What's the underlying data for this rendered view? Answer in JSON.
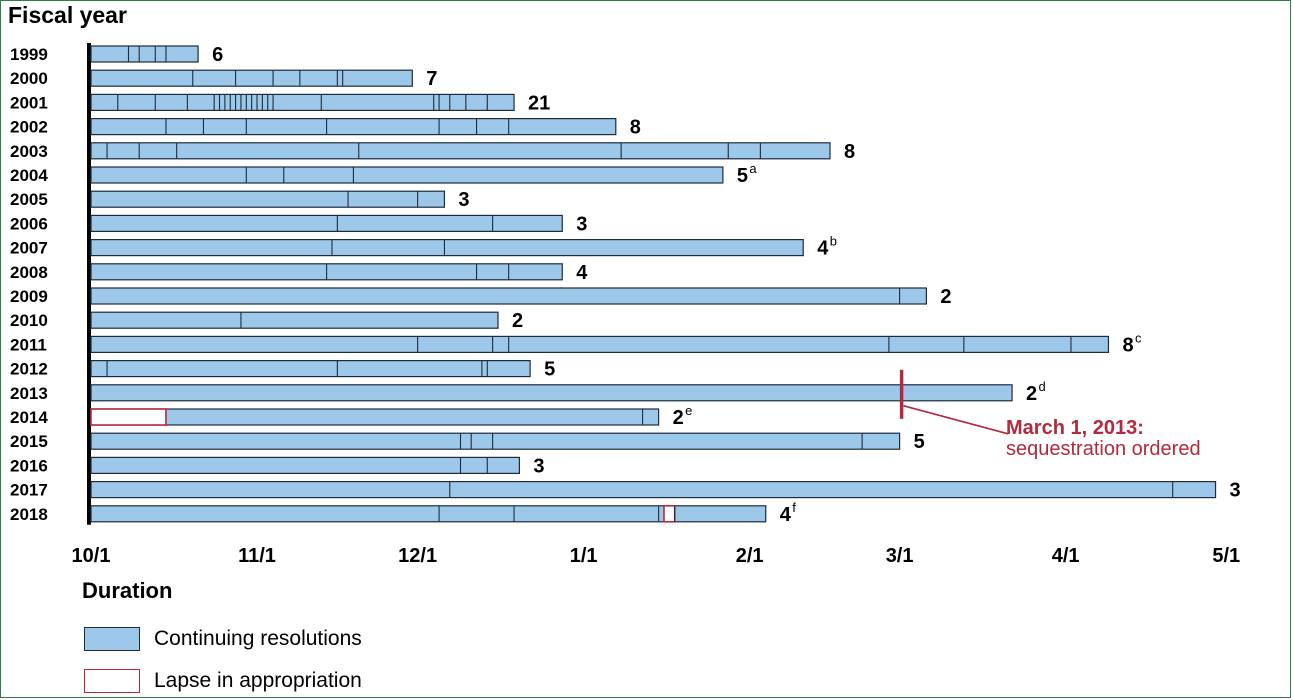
{
  "title": "Fiscal year",
  "colors": {
    "cr_fill": "#9dc8ea",
    "cr_stroke": "#1e2b3a",
    "lapse_stroke": "#c0263a",
    "annotation": "#b22a3d",
    "border": "#2e7d46"
  },
  "chart_data": {
    "type": "bar",
    "orientation": "horizontal",
    "x_unit": "days since October 1",
    "x_ticks": [
      {
        "label": "10/1",
        "day": 0
      },
      {
        "label": "11/1",
        "day": 31
      },
      {
        "label": "12/1",
        "day": 61
      },
      {
        "label": "1/1",
        "day": 92
      },
      {
        "label": "2/1",
        "day": 123
      },
      {
        "label": "3/1",
        "day": 151
      },
      {
        "label": "4/1",
        "day": 182
      },
      {
        "label": "5/1",
        "day": 212
      }
    ],
    "xlim": [
      0,
      218
    ],
    "rows": [
      {
        "year": "1999",
        "count": "6",
        "sup": "",
        "end": 20,
        "dividers": [
          7,
          9,
          12,
          14
        ],
        "lapses": []
      },
      {
        "year": "2000",
        "count": "7",
        "sup": "",
        "end": 60,
        "dividers": [
          19,
          27,
          34,
          39,
          46,
          47
        ],
        "lapses": []
      },
      {
        "year": "2001",
        "count": "21",
        "sup": "",
        "end": 79,
        "dividers": [
          5,
          12,
          18,
          23,
          24,
          25,
          26,
          27,
          28,
          29,
          30,
          31,
          32,
          33,
          34,
          43,
          64,
          65,
          67,
          70,
          74
        ],
        "lapses": []
      },
      {
        "year": "2002",
        "count": "8",
        "sup": "",
        "end": 98,
        "dividers": [
          14,
          21,
          29,
          44,
          65,
          72,
          78
        ],
        "lapses": []
      },
      {
        "year": "2003",
        "count": "8",
        "sup": "",
        "end": 138,
        "dividers": [
          3,
          9,
          16,
          50,
          99,
          119,
          125
        ],
        "lapses": []
      },
      {
        "year": "2004",
        "count": "5",
        "sup": "a",
        "end": 118,
        "dividers": [
          29,
          36,
          49
        ],
        "lapses": []
      },
      {
        "year": "2005",
        "count": "3",
        "sup": "",
        "end": 66,
        "dividers": [
          48,
          61
        ],
        "lapses": []
      },
      {
        "year": "2006",
        "count": "3",
        "sup": "",
        "end": 88,
        "dividers": [
          46,
          75
        ],
        "lapses": []
      },
      {
        "year": "2007",
        "count": "4",
        "sup": "b",
        "end": 133,
        "dividers": [
          45,
          66
        ],
        "lapses": []
      },
      {
        "year": "2008",
        "count": "4",
        "sup": "",
        "end": 88,
        "dividers": [
          44,
          72,
          78
        ],
        "lapses": []
      },
      {
        "year": "2009",
        "count": "2",
        "sup": "",
        "end": 156,
        "dividers": [
          151
        ],
        "lapses": []
      },
      {
        "year": "2010",
        "count": "2",
        "sup": "",
        "end": 76,
        "dividers": [
          28
        ],
        "lapses": []
      },
      {
        "year": "2011",
        "count": "8",
        "sup": "c",
        "end": 190,
        "dividers": [
          61,
          75,
          78,
          149,
          163,
          183
        ],
        "lapses": []
      },
      {
        "year": "2012",
        "count": "5",
        "sup": "",
        "end": 82,
        "dividers": [
          3,
          46,
          73,
          74
        ],
        "lapses": []
      },
      {
        "year": "2013",
        "count": "2",
        "sup": "d",
        "end": 172,
        "dividers": [],
        "lapses": []
      },
      {
        "year": "2014",
        "count": "2",
        "sup": "e",
        "end": 106,
        "dividers": [
          103
        ],
        "lapses": [
          [
            0,
            14
          ]
        ]
      },
      {
        "year": "2015",
        "count": "5",
        "sup": "",
        "end": 151,
        "dividers": [
          69,
          71,
          75,
          144
        ],
        "lapses": []
      },
      {
        "year": "2016",
        "count": "3",
        "sup": "",
        "end": 80,
        "dividers": [
          69,
          74
        ],
        "lapses": []
      },
      {
        "year": "2017",
        "count": "3",
        "sup": "",
        "end": 210,
        "dividers": [
          67,
          202
        ],
        "lapses": []
      },
      {
        "year": "2018",
        "count": "4",
        "sup": "f",
        "end": 126,
        "dividers": [
          65,
          79,
          106,
          109
        ],
        "lapses": [
          [
            107,
            109
          ]
        ]
      }
    ],
    "annotation": {
      "day": 151,
      "line1": "March 1, 2013:",
      "line2": "sequestration ordered"
    }
  },
  "legend": {
    "title": "Duration",
    "items": [
      {
        "label": "Continuing resolutions",
        "kind": "cr"
      },
      {
        "label": "Lapse in appropriation",
        "kind": "lapse"
      }
    ]
  }
}
